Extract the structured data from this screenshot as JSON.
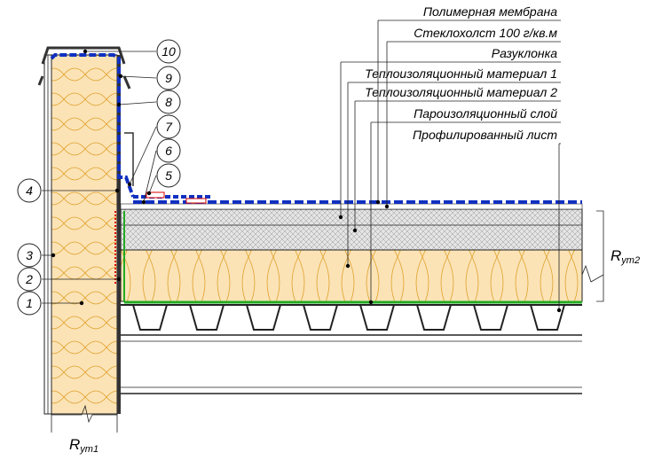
{
  "layers": [
    "Полимерная мембрана",
    "Стеклохолст 100 г/кв.м",
    "Разуклонка",
    "Теплоизоляционный материал 1",
    "Теплоизоляционный материал 2",
    "Пароизоляционный слой",
    "Профилированный лист"
  ],
  "callouts": [
    "1",
    "2",
    "3",
    "4",
    "5",
    "6",
    "7",
    "8",
    "9",
    "10"
  ],
  "dimensions": [
    {
      "symbol": "R",
      "subscript": "ут1"
    },
    {
      "symbol": "R",
      "subscript": "ут2"
    }
  ]
}
